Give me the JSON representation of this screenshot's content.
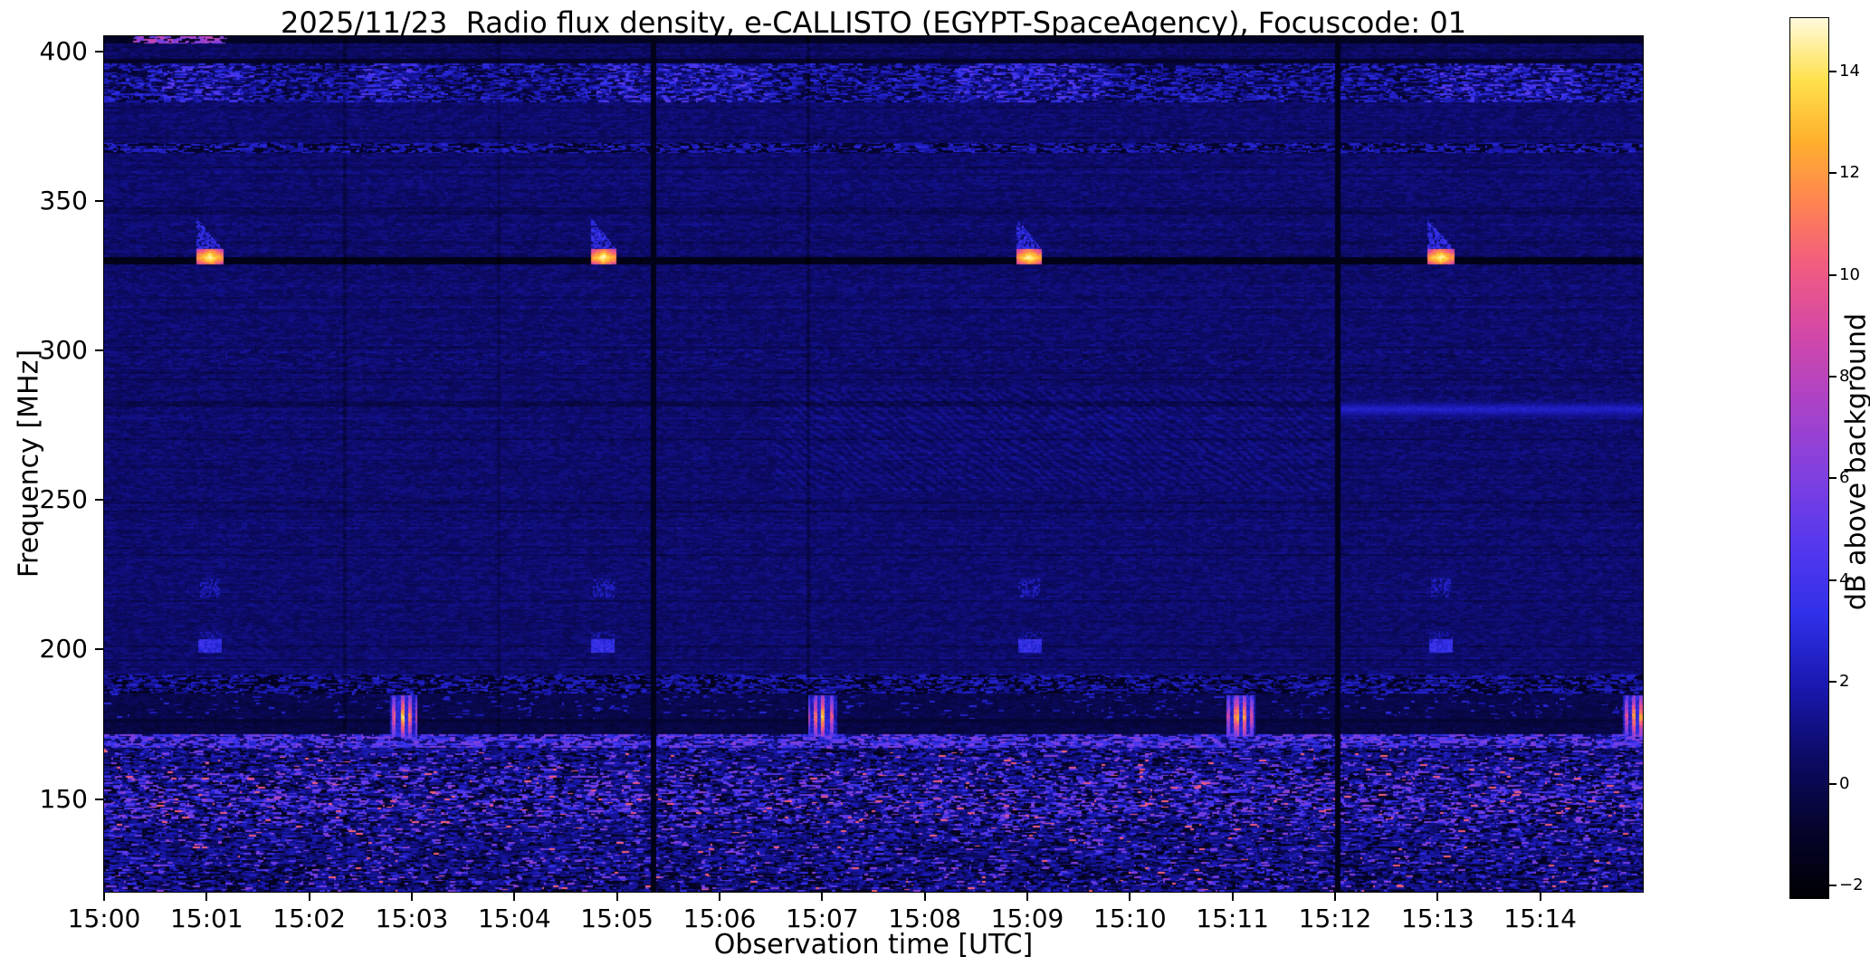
{
  "chart_data": {
    "type": "heatmap",
    "title": "2025/11/23  Radio flux density, e-CALLISTO (EGYPT-SpaceAgency), Focuscode: 01",
    "x_axis": {
      "label": "Observation time [UTC]",
      "range_min": [
        0,
        15
      ],
      "tick_minutes": [
        0,
        1,
        2,
        3,
        4,
        5,
        6,
        7,
        8,
        9,
        10,
        11,
        12,
        13,
        14
      ],
      "tick_labels": [
        "15:00",
        "15:01",
        "15:02",
        "15:03",
        "15:04",
        "15:05",
        "15:06",
        "15:07",
        "15:08",
        "15:09",
        "15:10",
        "15:11",
        "15:12",
        "15:13",
        "15:14"
      ]
    },
    "y_axis": {
      "label": "Frequency [MHz]",
      "range_mhz": [
        119,
        405
      ],
      "ticks_mhz": [
        400,
        350,
        300,
        250,
        200,
        150
      ],
      "tick_labels": [
        "400",
        "350",
        "300",
        "250",
        "200",
        "150"
      ]
    },
    "colorbar": {
      "label": "dB above background",
      "vmin": -2.25,
      "vmax": 15.05,
      "ticks": [
        14,
        12,
        10,
        8,
        6,
        4,
        2,
        0,
        -2
      ],
      "tick_labels": [
        "14",
        "12",
        "10",
        "8",
        "6",
        "4",
        "2",
        "0",
        "−2"
      ],
      "stops": [
        [
          0,
          "#000004"
        ],
        [
          0.08,
          "#05042e"
        ],
        [
          0.16,
          "#0c0b66"
        ],
        [
          0.24,
          "#1a18b0"
        ],
        [
          0.32,
          "#3030e8"
        ],
        [
          0.4,
          "#5538ee"
        ],
        [
          0.48,
          "#8040e0"
        ],
        [
          0.56,
          "#aa42c8"
        ],
        [
          0.64,
          "#d348a8"
        ],
        [
          0.72,
          "#f25c80"
        ],
        [
          0.79,
          "#ff8452"
        ],
        [
          0.86,
          "#ffb02e"
        ],
        [
          0.93,
          "#ffe14e"
        ],
        [
          1,
          "#fffadd"
        ]
      ]
    },
    "features": {
      "noise_seed": 20251123,
      "background_db": 0.62,
      "calibration_bursts_330": {
        "times_min": [
          1.03,
          4.87,
          9.02,
          13.03
        ],
        "half_width_min": 0.13,
        "core_mhz": [
          328.5,
          333.5
        ],
        "flag_mhz_top": 344.5,
        "peak_db": 15.2,
        "echo1_mhz": [
          217.5,
          224
        ],
        "echo2_mhz": [
          199,
          206
        ]
      },
      "comb_bursts_178": {
        "times_min": [
          2.92,
          7.0,
          11.08,
          14.95
        ],
        "half_width_min": 0.14,
        "band_mhz": [
          170.5,
          184.5
        ],
        "center_mhz": 177.5,
        "peak_db": 14,
        "stripe_period_min": 0.038
      },
      "bands": {
        "top_edge_mhz": [
          402.5,
          405
        ],
        "top_edge_pink_t": [
          0.3,
          1.2
        ],
        "rfi_high_mhz": [
          383,
          396
        ],
        "rfi_high_hot_times": [
          [
            0.55,
            1.45
          ],
          [
            2.5,
            3.1
          ],
          [
            4.8,
            6.5
          ],
          [
            8.3,
            9.8
          ],
          [
            12.9,
            14.4
          ]
        ],
        "rfi_367_mhz": [
          366,
          369.5
        ],
        "mottle_297_mhz": [
          294,
          300
        ],
        "rfi_188_mhz": [
          185,
          192
        ],
        "dim_180_mhz": [
          176,
          185
        ],
        "dark_174_mhz": [
          171.5,
          176
        ],
        "magenta_169_mhz": [
          167,
          171.5
        ],
        "broadband_low_mhz": [
          119,
          167
        ],
        "low_pink_peak_mhz": 149
      },
      "dark_hlines_mhz": [
        330,
        396.8,
        282,
        176.1
      ],
      "vlines": [
        {
          "t_min": 2.35,
          "strength": 0.45
        },
        {
          "t_min": 3.85,
          "strength": 0.3
        },
        {
          "t_min": 5.36,
          "strength": 1.0
        },
        {
          "t_min": 6.86,
          "strength": 0.5
        },
        {
          "t_min": 12.02,
          "strength": 1.0
        }
      ],
      "interference_patch": {
        "mhz": [
          253,
          287
        ],
        "t_min": [
          6.55,
          11.95
        ],
        "amp_db": 0.33
      },
      "blue_streak": {
        "mhz": [
          277,
          283
        ],
        "t_min": [
          12.0,
          15.0
        ],
        "peak_db": 2.4
      }
    }
  }
}
